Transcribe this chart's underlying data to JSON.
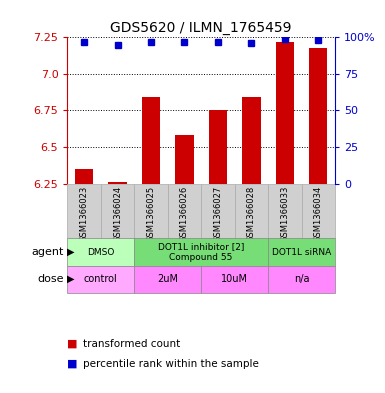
{
  "title": "GDS5620 / ILMN_1765459",
  "samples": [
    "GSM1366023",
    "GSM1366024",
    "GSM1366025",
    "GSM1366026",
    "GSM1366027",
    "GSM1366028",
    "GSM1366033",
    "GSM1366034"
  ],
  "bar_values": [
    6.35,
    6.26,
    6.84,
    6.58,
    6.75,
    6.84,
    7.22,
    7.18
  ],
  "percentile_values": [
    97,
    95,
    97,
    97,
    97,
    96,
    99,
    98
  ],
  "ylim": [
    6.25,
    7.25
  ],
  "yticks_left": [
    6.25,
    6.5,
    6.75,
    7.0,
    7.25
  ],
  "yticks_right": [
    0,
    25,
    50,
    75,
    100
  ],
  "bar_color": "#cc0000",
  "dot_color": "#0000cc",
  "agent_groups": [
    {
      "label": "DMSO",
      "start": 0,
      "end": 2,
      "color": "#bbffbb"
    },
    {
      "label": "DOT1L inhibitor [2]\nCompound 55",
      "start": 2,
      "end": 6,
      "color": "#77dd77"
    },
    {
      "label": "DOT1L siRNA",
      "start": 6,
      "end": 8,
      "color": "#77dd77"
    }
  ],
  "dose_groups": [
    {
      "label": "control",
      "start": 0,
      "end": 2,
      "color": "#ffaaff"
    },
    {
      "label": "2uM",
      "start": 2,
      "end": 4,
      "color": "#ff88ff"
    },
    {
      "label": "10uM",
      "start": 4,
      "end": 6,
      "color": "#ff88ff"
    },
    {
      "label": "n/a",
      "start": 6,
      "end": 8,
      "color": "#ff88ff"
    }
  ],
  "legend_red_label": "transformed count",
  "legend_blue_label": "percentile rank within the sample",
  "sample_bg": "#d0d0d0"
}
